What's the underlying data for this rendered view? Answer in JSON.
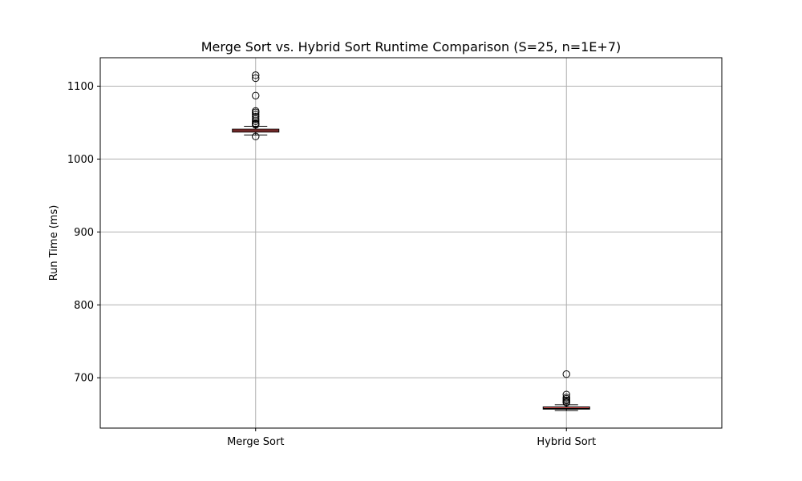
{
  "chart_data": {
    "type": "box",
    "title": "Merge Sort vs. Hybrid Sort Runtime Comparison (S=25, n=1E+7)",
    "xlabel": "",
    "ylabel": "Run Time (ms)",
    "ylim": [
      631,
      1139
    ],
    "yticks": [
      700,
      800,
      900,
      1000,
      1100
    ],
    "grid": true,
    "box_color": "#e05050",
    "categories": [
      "Merge Sort",
      "Hybrid Sort"
    ],
    "boxes": [
      {
        "label": "Merge Sort",
        "whisker_low": 1033,
        "q1": 1037,
        "median": 1039,
        "q3": 1041,
        "whisker_high": 1045,
        "outliers": [
          1031,
          1047,
          1048,
          1049,
          1052,
          1055,
          1058,
          1061,
          1064,
          1066,
          1087,
          1111,
          1115
        ]
      },
      {
        "label": "Hybrid Sort",
        "whisker_low": 655,
        "q1": 657,
        "median": 658,
        "q3": 660,
        "whisker_high": 663,
        "outliers": [
          666,
          667,
          669,
          671,
          673,
          677,
          705
        ]
      }
    ]
  }
}
